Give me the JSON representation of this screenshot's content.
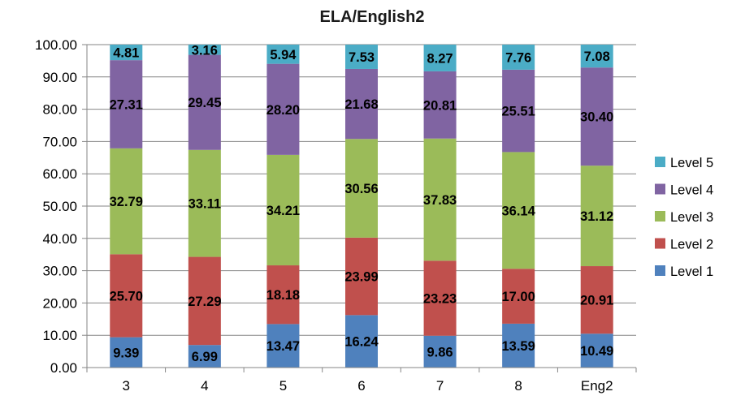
{
  "chart_data": {
    "type": "bar",
    "stacked": true,
    "title": "ELA/English2",
    "xlabel": "",
    "ylabel": "",
    "ylim": [
      0,
      100
    ],
    "yticks": [
      "0.00",
      "10.00",
      "20.00",
      "30.00",
      "40.00",
      "50.00",
      "60.00",
      "70.00",
      "80.00",
      "90.00",
      "100.00"
    ],
    "grid": true,
    "legend_position": "right",
    "categories": [
      "3",
      "4",
      "5",
      "6",
      "7",
      "8",
      "Eng2"
    ],
    "series": [
      {
        "name": "Level 1",
        "color": "#4F81BD",
        "values": [
          9.39,
          6.99,
          13.47,
          16.24,
          9.86,
          13.59,
          10.49
        ],
        "labels": [
          "9.39",
          "6.99",
          "13.47",
          "16.24",
          "9.86",
          "13.59",
          "10.49"
        ]
      },
      {
        "name": "Level 2",
        "color": "#C0504D",
        "values": [
          25.7,
          27.29,
          18.18,
          23.99,
          23.23,
          17.0,
          20.91
        ],
        "labels": [
          "25.70",
          "27.29",
          "18.18",
          "23.99",
          "23.23",
          "17.00",
          "20.91"
        ]
      },
      {
        "name": "Level 3",
        "color": "#9BBB59",
        "values": [
          32.79,
          33.11,
          34.21,
          30.56,
          37.83,
          36.14,
          31.12
        ],
        "labels": [
          "32.79",
          "33.11",
          "34.21",
          "30.56",
          "37.83",
          "36.14",
          "31.12"
        ]
      },
      {
        "name": "Level 4",
        "color": "#8064A2",
        "values": [
          27.31,
          29.45,
          28.2,
          21.68,
          20.81,
          25.51,
          30.4
        ],
        "labels": [
          "27.31",
          "29.45",
          "28.20",
          "21.68",
          "20.81",
          "25.51",
          "30.40"
        ]
      },
      {
        "name": "Level 5",
        "color": "#4BACC6",
        "values": [
          4.81,
          3.16,
          5.94,
          7.53,
          8.27,
          7.76,
          7.08
        ],
        "labels": [
          "4.81",
          "3.16",
          "5.94",
          "7.53",
          "8.27",
          "7.76",
          "7.08"
        ]
      }
    ]
  }
}
